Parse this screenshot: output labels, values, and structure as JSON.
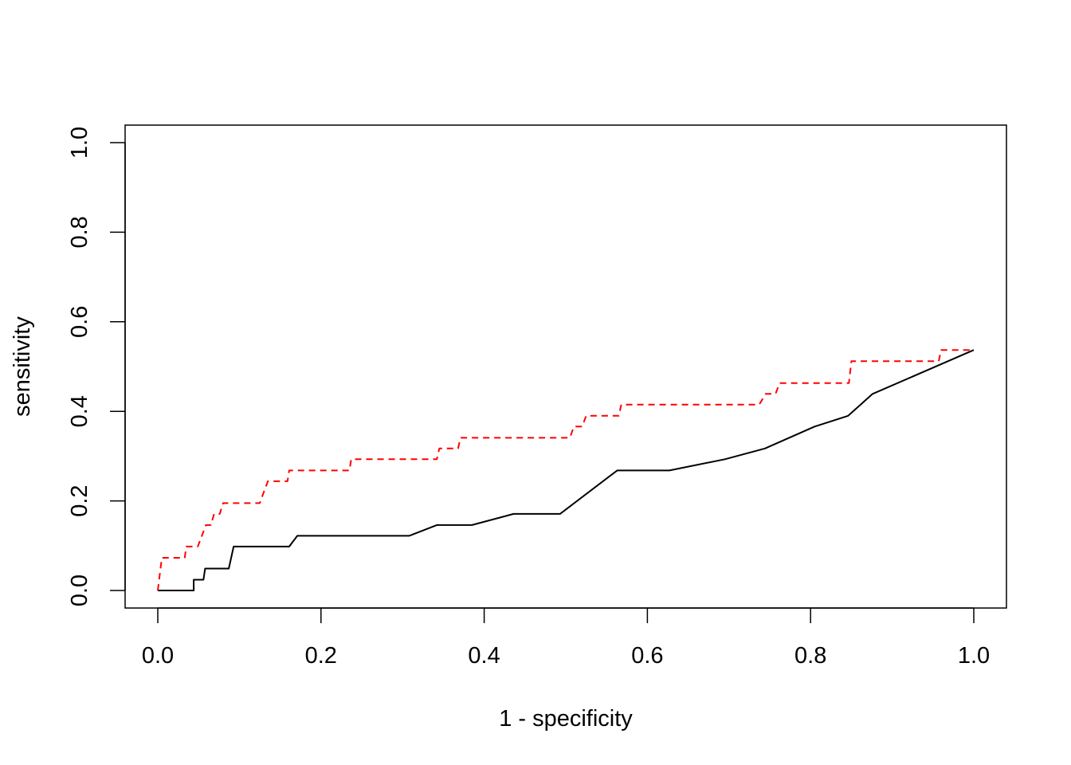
{
  "chart_data": {
    "type": "line",
    "title": "",
    "xlabel": "1 - specificity",
    "ylabel": "sensitivity",
    "xlim": [
      0,
      1
    ],
    "ylim": [
      0,
      1
    ],
    "x_ticks": [
      0.0,
      0.2,
      0.4,
      0.6,
      0.8,
      1.0
    ],
    "x_tick_labels": [
      "0.0",
      "0.2",
      "0.4",
      "0.6",
      "0.8",
      "1.0"
    ],
    "y_ticks": [
      0.0,
      0.2,
      0.4,
      0.6,
      0.8,
      1.0
    ],
    "y_tick_labels": [
      "0.0",
      "0.2",
      "0.4",
      "0.6",
      "0.8",
      "1.0"
    ],
    "grid": false,
    "legend": "none",
    "series": [
      {
        "color": "#000000",
        "style": "solid",
        "points": [
          [
            0.0,
            0.0
          ],
          [
            0.044,
            0.0
          ],
          [
            0.044,
            0.024
          ],
          [
            0.056,
            0.024
          ],
          [
            0.058,
            0.049
          ],
          [
            0.087,
            0.049
          ],
          [
            0.093,
            0.098
          ],
          [
            0.161,
            0.098
          ],
          [
            0.171,
            0.122
          ],
          [
            0.308,
            0.122
          ],
          [
            0.342,
            0.146
          ],
          [
            0.385,
            0.146
          ],
          [
            0.436,
            0.171
          ],
          [
            0.493,
            0.171
          ],
          [
            0.563,
            0.268
          ],
          [
            0.627,
            0.268
          ],
          [
            0.695,
            0.293
          ],
          [
            0.744,
            0.317
          ],
          [
            0.805,
            0.366
          ],
          [
            0.846,
            0.39
          ],
          [
            0.876,
            0.439
          ],
          [
            1.0,
            0.537
          ]
        ]
      },
      {
        "color": "#ff0000",
        "style": "dashed",
        "points": [
          [
            0.0,
            0.0
          ],
          [
            0.005,
            0.073
          ],
          [
            0.033,
            0.073
          ],
          [
            0.035,
            0.098
          ],
          [
            0.049,
            0.098
          ],
          [
            0.059,
            0.146
          ],
          [
            0.065,
            0.146
          ],
          [
            0.069,
            0.171
          ],
          [
            0.076,
            0.171
          ],
          [
            0.08,
            0.195
          ],
          [
            0.125,
            0.195
          ],
          [
            0.13,
            0.22
          ],
          [
            0.135,
            0.244
          ],
          [
            0.159,
            0.244
          ],
          [
            0.161,
            0.268
          ],
          [
            0.235,
            0.268
          ],
          [
            0.237,
            0.293
          ],
          [
            0.342,
            0.293
          ],
          [
            0.345,
            0.317
          ],
          [
            0.368,
            0.317
          ],
          [
            0.371,
            0.341
          ],
          [
            0.505,
            0.341
          ],
          [
            0.51,
            0.366
          ],
          [
            0.52,
            0.366
          ],
          [
            0.525,
            0.39
          ],
          [
            0.565,
            0.39
          ],
          [
            0.568,
            0.415
          ],
          [
            0.737,
            0.415
          ],
          [
            0.745,
            0.439
          ],
          [
            0.757,
            0.439
          ],
          [
            0.762,
            0.463
          ],
          [
            0.847,
            0.463
          ],
          [
            0.85,
            0.512
          ],
          [
            0.957,
            0.512
          ],
          [
            0.96,
            0.537
          ],
          [
            1.0,
            0.537
          ]
        ]
      }
    ]
  }
}
